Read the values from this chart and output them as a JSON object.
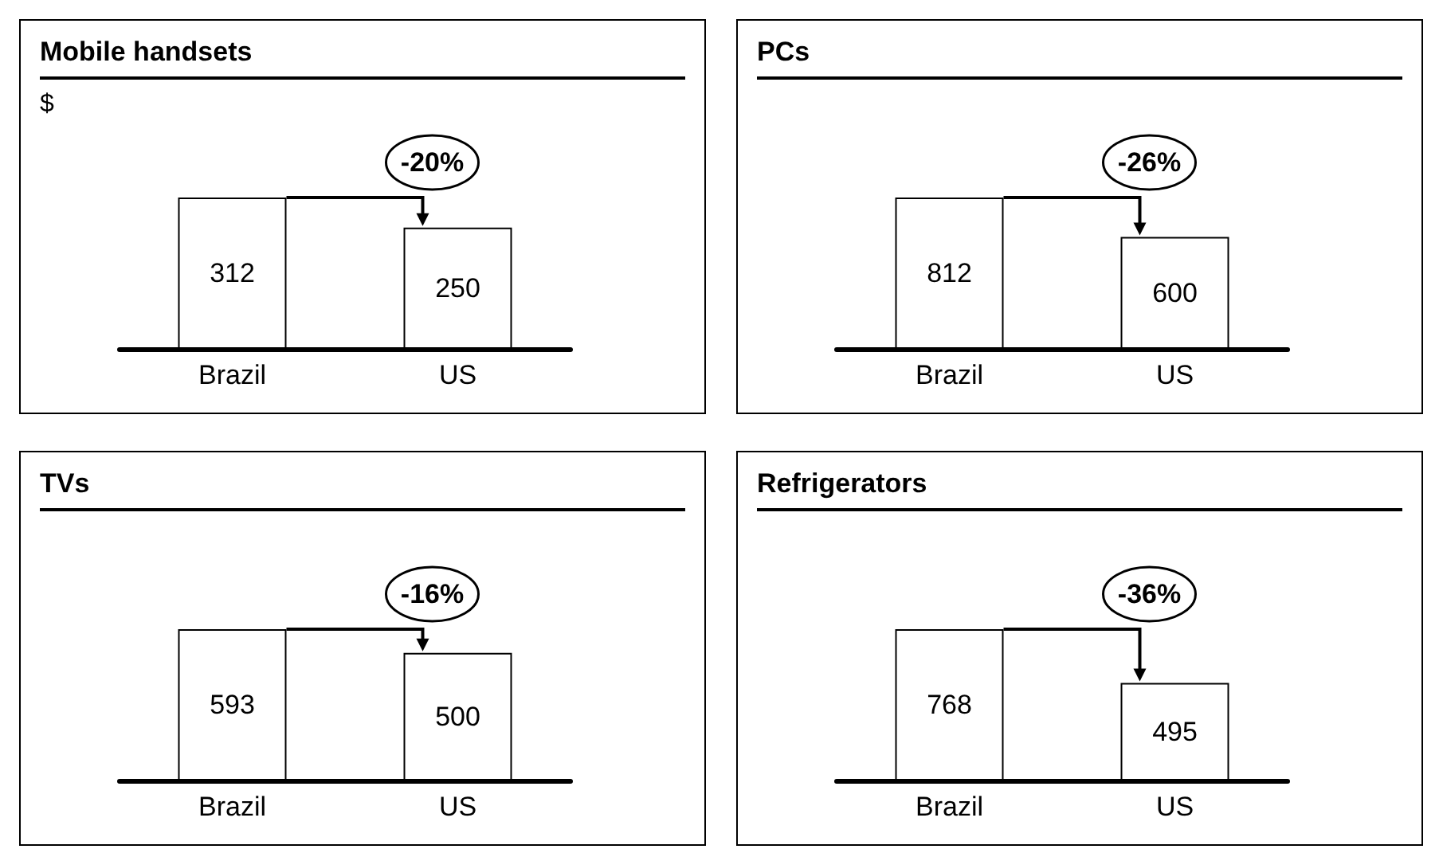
{
  "chart_data": [
    {
      "type": "bar",
      "title": "Mobile handsets",
      "ylabel": "$",
      "categories": [
        "Brazil",
        "US"
      ],
      "values": [
        312,
        250
      ],
      "color": "#ffffff",
      "data_labels": true,
      "annotations": [
        "-20%"
      ]
    },
    {
      "type": "bar",
      "title": "PCs",
      "categories": [
        "Brazil",
        "US"
      ],
      "values": [
        812,
        600
      ],
      "color": "#ffffff",
      "data_labels": true,
      "annotations": [
        "-26%"
      ]
    },
    {
      "type": "bar",
      "title": "TVs",
      "categories": [
        "Brazil",
        "US"
      ],
      "values": [
        593,
        500
      ],
      "color": "#ffffff",
      "data_labels": true,
      "annotations": [
        "-16%"
      ]
    },
    {
      "type": "bar",
      "title": "Refrigerators",
      "categories": [
        "Brazil",
        "US"
      ],
      "values": [
        768,
        495
      ],
      "color": "#ffffff",
      "data_labels": true,
      "annotations": [
        "-36%"
      ]
    }
  ]
}
